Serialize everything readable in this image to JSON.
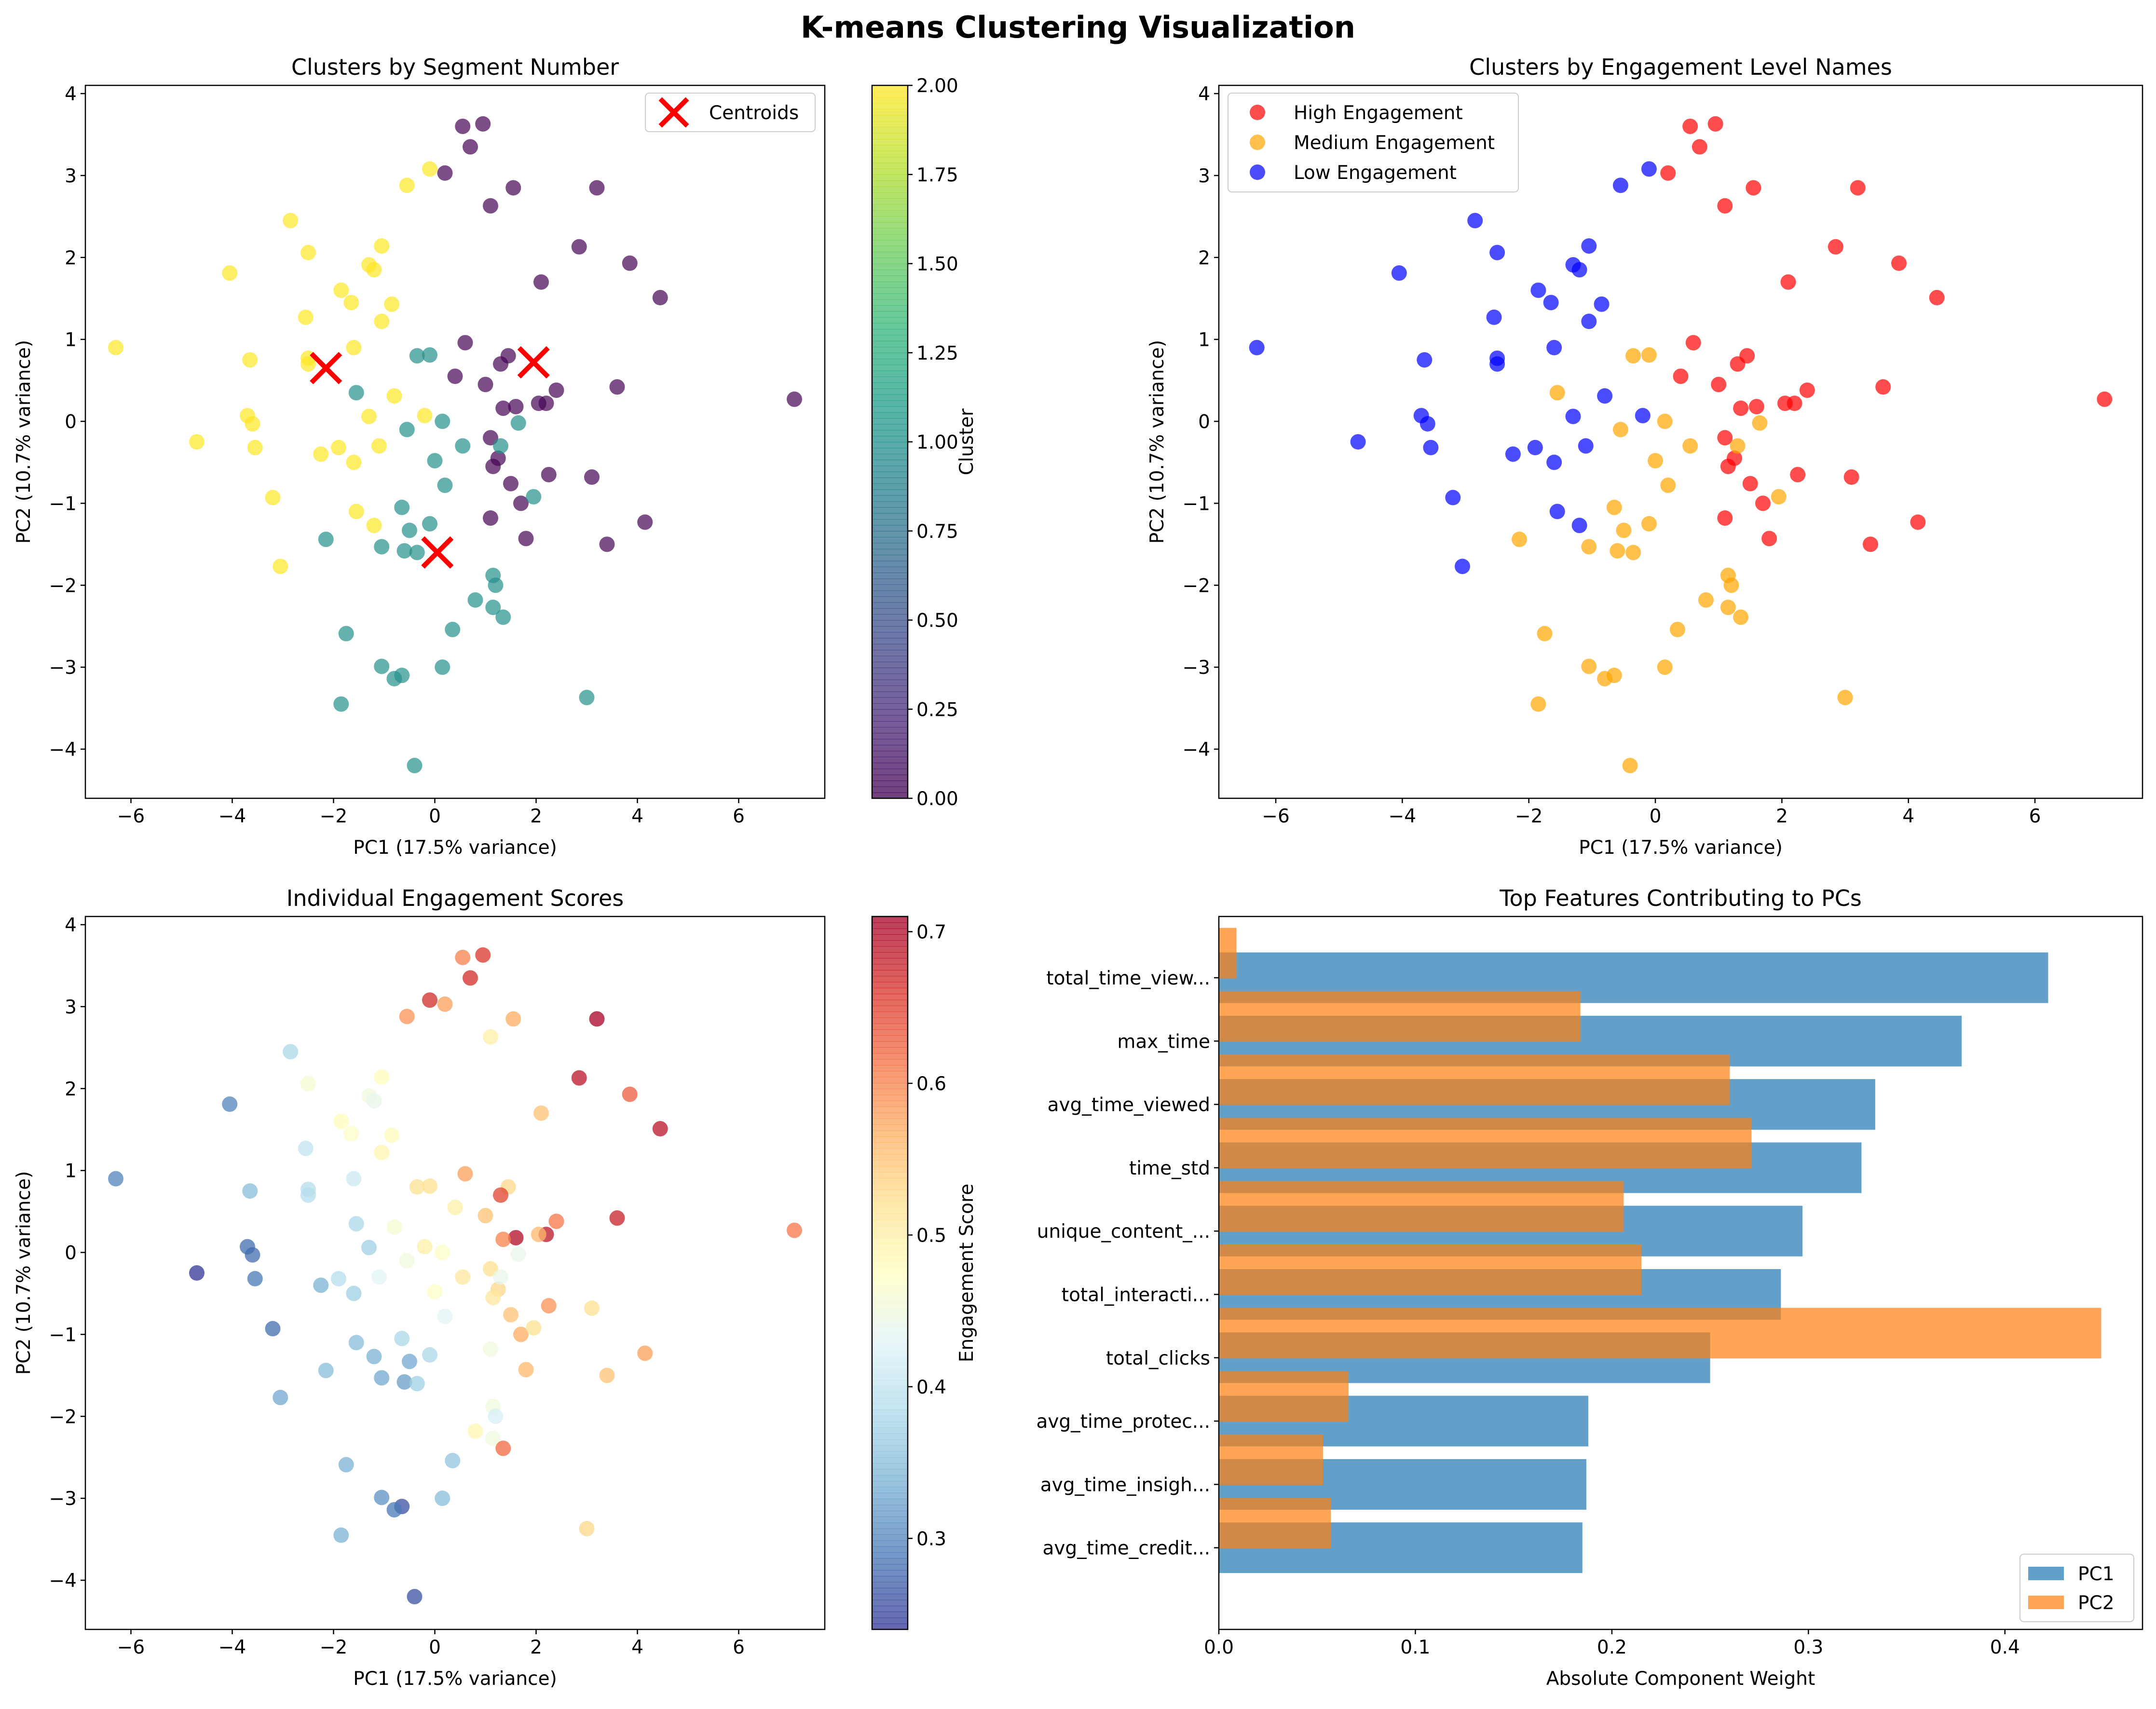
{
  "figure": {
    "title": "K-means Clustering Visualization"
  },
  "chart_data": [
    {
      "id": "clusters-by-segment",
      "type": "scatter",
      "title": "Clusters by Segment Number",
      "xlabel": "PC1 (17.5% variance)",
      "ylabel": "PC2 (10.7% variance)",
      "xlim": [
        -6.9,
        7.7
      ],
      "ylim": [
        -4.6,
        4.1
      ],
      "xticks": [
        -6,
        -4,
        -2,
        0,
        2,
        4,
        6
      ],
      "yticks": [
        -4,
        -3,
        -2,
        -1,
        0,
        1,
        2,
        3,
        4
      ],
      "point_source": "points",
      "color_by": "cluster",
      "colormap": "viridis",
      "colorbar": {
        "label": "Cluster",
        "min": 0,
        "max": 2,
        "ticks": [
          "0.00",
          "0.25",
          "0.50",
          "0.75",
          "1.00",
          "1.25",
          "1.50",
          "1.75",
          "2.00"
        ]
      },
      "centroids": [
        [
          -2.15,
          0.65
        ],
        [
          1.95,
          0.72
        ],
        [
          0.05,
          -1.6
        ]
      ],
      "legend": {
        "position": "top-right",
        "entries": [
          {
            "label": "Centroids",
            "marker": "x",
            "color": "#ff0000"
          }
        ]
      }
    },
    {
      "id": "clusters-by-engagement-level",
      "type": "scatter",
      "title": "Clusters by Engagement Level Names",
      "xlabel": "PC1 (17.5% variance)",
      "ylabel": "PC2 (10.7% variance)",
      "xlim": [
        -6.9,
        7.7
      ],
      "ylim": [
        -4.6,
        4.1
      ],
      "xticks": [
        -6,
        -4,
        -2,
        0,
        2,
        4,
        6
      ],
      "yticks": [
        -4,
        -3,
        -2,
        -1,
        0,
        1,
        2,
        3,
        4
      ],
      "point_source": "points",
      "color_by": "cluster",
      "category_colors": {
        "0": "#ff0000",
        "1": "#ffa500",
        "2": "#0000ff"
      },
      "legend": {
        "position": "top-left",
        "entries": [
          {
            "label": "High Engagement",
            "color": "#ff0000"
          },
          {
            "label": "Medium Engagement",
            "color": "#ffa500"
          },
          {
            "label": "Low Engagement",
            "color": "#0000ff"
          }
        ]
      }
    },
    {
      "id": "individual-engagement-scores",
      "type": "scatter",
      "title": "Individual Engagement Scores",
      "xlabel": "PC1 (17.5% variance)",
      "ylabel": "PC2 (10.7% variance)",
      "xlim": [
        -6.9,
        7.7
      ],
      "ylim": [
        -4.6,
        4.1
      ],
      "xticks": [
        -6,
        -4,
        -2,
        0,
        2,
        4,
        6
      ],
      "yticks": [
        -4,
        -3,
        -2,
        -1,
        0,
        1,
        2,
        3,
        4
      ],
      "point_source": "points",
      "color_by": "score",
      "colormap": "RdYlBu_r",
      "colorbar": {
        "label": "Engagement Score",
        "min": 0.24,
        "max": 0.71,
        "ticks": [
          "0.3",
          "0.4",
          "0.5",
          "0.6",
          "0.7"
        ]
      }
    },
    {
      "id": "top-features",
      "type": "bar",
      "orientation": "horizontal",
      "title": "Top Features Contributing to PCs",
      "xlabel": "Absolute Component Weight",
      "xlim": [
        0,
        0.47
      ],
      "xticks": [
        "0.0",
        "0.1",
        "0.2",
        "0.3",
        "0.4"
      ],
      "categories": [
        "total_time_view...",
        "max_time",
        "avg_time_viewed",
        "time_std",
        "unique_content_...",
        "total_interacti...",
        "total_clicks",
        "avg_time_protec...",
        "avg_time_insigh...",
        "avg_time_credit..."
      ],
      "series": [
        {
          "name": "PC1",
          "color": "#1f77b4",
          "values": [
            0.422,
            0.378,
            0.334,
            0.327,
            0.297,
            0.286,
            0.25,
            0.188,
            0.187,
            0.185
          ]
        },
        {
          "name": "PC2",
          "color": "#ff7f0e",
          "values": [
            0.009,
            0.184,
            0.26,
            0.271,
            0.206,
            0.215,
            0.449,
            0.066,
            0.053,
            0.057
          ]
        }
      ],
      "legend": {
        "position": "bottom-right"
      }
    }
  ],
  "points": [
    {
      "x": 0.55,
      "y": 3.6,
      "cluster": 0,
      "score": 0.6
    },
    {
      "x": 0.95,
      "y": 3.63,
      "cluster": 0,
      "score": 0.66
    },
    {
      "x": 0.7,
      "y": 3.35,
      "cluster": 0,
      "score": 0.67
    },
    {
      "x": 0.2,
      "y": 3.03,
      "cluster": 0,
      "score": 0.58
    },
    {
      "x": 1.55,
      "y": 2.85,
      "cluster": 0,
      "score": 0.57
    },
    {
      "x": 3.2,
      "y": 2.85,
      "cluster": 0,
      "score": 0.71
    },
    {
      "x": 1.1,
      "y": 2.63,
      "cluster": 0,
      "score": 0.5
    },
    {
      "x": 2.85,
      "y": 2.13,
      "cluster": 0,
      "score": 0.69
    },
    {
      "x": 3.85,
      "y": 1.93,
      "cluster": 0,
      "score": 0.63
    },
    {
      "x": 2.1,
      "y": 1.7,
      "cluster": 0,
      "score": 0.55
    },
    {
      "x": 4.45,
      "y": 1.51,
      "cluster": 0,
      "score": 0.69
    },
    {
      "x": 0.6,
      "y": 0.96,
      "cluster": 0,
      "score": 0.58
    },
    {
      "x": 1.45,
      "y": 0.8,
      "cluster": 0,
      "score": 0.53
    },
    {
      "x": 1.3,
      "y": 0.7,
      "cluster": 0,
      "score": 0.65
    },
    {
      "x": 0.4,
      "y": 0.55,
      "cluster": 0,
      "score": 0.5
    },
    {
      "x": 2.4,
      "y": 0.38,
      "cluster": 0,
      "score": 0.61
    },
    {
      "x": 3.6,
      "y": 0.42,
      "cluster": 0,
      "score": 0.68
    },
    {
      "x": 1.0,
      "y": 0.45,
      "cluster": 0,
      "score": 0.55
    },
    {
      "x": 2.2,
      "y": 0.22,
      "cluster": 0,
      "score": 0.69
    },
    {
      "x": 2.05,
      "y": 0.22,
      "cluster": 0,
      "score": 0.56
    },
    {
      "x": 1.6,
      "y": 0.18,
      "cluster": 0,
      "score": 0.7
    },
    {
      "x": 1.35,
      "y": 0.16,
      "cluster": 0,
      "score": 0.6
    },
    {
      "x": 7.1,
      "y": 0.27,
      "cluster": 0,
      "score": 0.61
    },
    {
      "x": 1.1,
      "y": -0.2,
      "cluster": 0,
      "score": 0.52
    },
    {
      "x": 1.25,
      "y": -0.45,
      "cluster": 0,
      "score": 0.53
    },
    {
      "x": 1.15,
      "y": -0.55,
      "cluster": 0,
      "score": 0.51
    },
    {
      "x": 2.25,
      "y": -0.65,
      "cluster": 0,
      "score": 0.59
    },
    {
      "x": 3.1,
      "y": -0.68,
      "cluster": 0,
      "score": 0.52
    },
    {
      "x": 1.5,
      "y": -0.76,
      "cluster": 0,
      "score": 0.55
    },
    {
      "x": 1.7,
      "y": -1.0,
      "cluster": 0,
      "score": 0.57
    },
    {
      "x": 1.1,
      "y": -1.18,
      "cluster": 0,
      "score": 0.45
    },
    {
      "x": 4.15,
      "y": -1.23,
      "cluster": 0,
      "score": 0.58
    },
    {
      "x": 1.8,
      "y": -1.43,
      "cluster": 0,
      "score": 0.56
    },
    {
      "x": 3.4,
      "y": -1.5,
      "cluster": 0,
      "score": 0.55
    },
    {
      "x": -0.35,
      "y": 0.8,
      "cluster": 1,
      "score": 0.52
    },
    {
      "x": -0.1,
      "y": 0.81,
      "cluster": 1,
      "score": 0.52
    },
    {
      "x": -1.55,
      "y": 0.35,
      "cluster": 1,
      "score": 0.38
    },
    {
      "x": 0.15,
      "y": 0.0,
      "cluster": 1,
      "score": 0.47
    },
    {
      "x": -0.55,
      "y": -0.1,
      "cluster": 1,
      "score": 0.45
    },
    {
      "x": 0.55,
      "y": -0.3,
      "cluster": 1,
      "score": 0.51
    },
    {
      "x": 1.3,
      "y": -0.3,
      "cluster": 1,
      "score": 0.44
    },
    {
      "x": 0.0,
      "y": -0.48,
      "cluster": 1,
      "score": 0.47
    },
    {
      "x": 0.2,
      "y": -0.78,
      "cluster": 1,
      "score": 0.43
    },
    {
      "x": 1.65,
      "y": -0.02,
      "cluster": 1,
      "score": 0.44
    },
    {
      "x": 1.95,
      "y": -0.92,
      "cluster": 1,
      "score": 0.52
    },
    {
      "x": -0.65,
      "y": -1.05,
      "cluster": 1,
      "score": 0.38
    },
    {
      "x": -0.1,
      "y": -1.25,
      "cluster": 1,
      "score": 0.38
    },
    {
      "x": -0.5,
      "y": -1.33,
      "cluster": 1,
      "score": 0.33
    },
    {
      "x": -1.05,
      "y": -1.53,
      "cluster": 1,
      "score": 0.33
    },
    {
      "x": -0.6,
      "y": -1.58,
      "cluster": 1,
      "score": 0.32
    },
    {
      "x": -2.15,
      "y": -1.44,
      "cluster": 1,
      "score": 0.35
    },
    {
      "x": -0.35,
      "y": -1.6,
      "cluster": 1,
      "score": 0.37
    },
    {
      "x": 1.15,
      "y": -1.88,
      "cluster": 1,
      "score": 0.45
    },
    {
      "x": 1.2,
      "y": -2.0,
      "cluster": 1,
      "score": 0.42
    },
    {
      "x": 0.8,
      "y": -2.18,
      "cluster": 1,
      "score": 0.49
    },
    {
      "x": 1.15,
      "y": -2.27,
      "cluster": 1,
      "score": 0.45
    },
    {
      "x": 1.35,
      "y": -2.39,
      "cluster": 1,
      "score": 0.62
    },
    {
      "x": 0.35,
      "y": -2.54,
      "cluster": 1,
      "score": 0.36
    },
    {
      "x": -1.75,
      "y": -2.59,
      "cluster": 1,
      "score": 0.34
    },
    {
      "x": -1.05,
      "y": -2.99,
      "cluster": 1,
      "score": 0.31
    },
    {
      "x": 0.15,
      "y": -3.0,
      "cluster": 1,
      "score": 0.35
    },
    {
      "x": -0.65,
      "y": -3.1,
      "cluster": 1,
      "score": 0.26
    },
    {
      "x": -0.8,
      "y": -3.14,
      "cluster": 1,
      "score": 0.29
    },
    {
      "x": 3.0,
      "y": -3.37,
      "cluster": 1,
      "score": 0.53
    },
    {
      "x": -1.85,
      "y": -3.45,
      "cluster": 1,
      "score": 0.34
    },
    {
      "x": -0.4,
      "y": -4.2,
      "cluster": 1,
      "score": 0.26
    },
    {
      "x": -0.1,
      "y": 3.08,
      "cluster": 2,
      "score": 0.67
    },
    {
      "x": -0.55,
      "y": 2.88,
      "cluster": 2,
      "score": 0.59
    },
    {
      "x": -2.85,
      "y": 2.45,
      "cluster": 2,
      "score": 0.38
    },
    {
      "x": -2.5,
      "y": 2.06,
      "cluster": 2,
      "score": 0.46
    },
    {
      "x": -1.05,
      "y": 2.14,
      "cluster": 2,
      "score": 0.48
    },
    {
      "x": -1.3,
      "y": 1.91,
      "cluster": 2,
      "score": 0.45
    },
    {
      "x": -1.2,
      "y": 1.85,
      "cluster": 2,
      "score": 0.44
    },
    {
      "x": -4.05,
      "y": 1.81,
      "cluster": 2,
      "score": 0.3
    },
    {
      "x": -1.85,
      "y": 1.6,
      "cluster": 2,
      "score": 0.48
    },
    {
      "x": -1.65,
      "y": 1.45,
      "cluster": 2,
      "score": 0.47
    },
    {
      "x": -0.85,
      "y": 1.43,
      "cluster": 2,
      "score": 0.48
    },
    {
      "x": -2.55,
      "y": 1.27,
      "cluster": 2,
      "score": 0.4
    },
    {
      "x": -1.05,
      "y": 1.22,
      "cluster": 2,
      "score": 0.49
    },
    {
      "x": -1.6,
      "y": 0.9,
      "cluster": 2,
      "score": 0.41
    },
    {
      "x": -6.3,
      "y": 0.9,
      "cluster": 2,
      "score": 0.3
    },
    {
      "x": -3.65,
      "y": 0.75,
      "cluster": 2,
      "score": 0.35
    },
    {
      "x": -2.5,
      "y": 0.77,
      "cluster": 2,
      "score": 0.39
    },
    {
      "x": -2.5,
      "y": 0.7,
      "cluster": 2,
      "score": 0.39
    },
    {
      "x": -0.8,
      "y": 0.31,
      "cluster": 2,
      "score": 0.46
    },
    {
      "x": -3.7,
      "y": 0.07,
      "cluster": 2,
      "score": 0.28
    },
    {
      "x": -1.3,
      "y": 0.06,
      "cluster": 2,
      "score": 0.37
    },
    {
      "x": -3.6,
      "y": -0.03,
      "cluster": 2,
      "score": 0.28
    },
    {
      "x": -0.2,
      "y": 0.07,
      "cluster": 2,
      "score": 0.5
    },
    {
      "x": -3.55,
      "y": -0.32,
      "cluster": 2,
      "score": 0.29
    },
    {
      "x": -4.7,
      "y": -0.25,
      "cluster": 2,
      "score": 0.24
    },
    {
      "x": -1.9,
      "y": -0.32,
      "cluster": 2,
      "score": 0.39
    },
    {
      "x": -1.1,
      "y": -0.3,
      "cluster": 2,
      "score": 0.43
    },
    {
      "x": -2.25,
      "y": -0.4,
      "cluster": 2,
      "score": 0.34
    },
    {
      "x": -1.6,
      "y": -0.5,
      "cluster": 2,
      "score": 0.37
    },
    {
      "x": -3.2,
      "y": -0.93,
      "cluster": 2,
      "score": 0.28
    },
    {
      "x": -1.55,
      "y": -1.1,
      "cluster": 2,
      "score": 0.35
    },
    {
      "x": -1.2,
      "y": -1.27,
      "cluster": 2,
      "score": 0.34
    },
    {
      "x": -3.05,
      "y": -1.77,
      "cluster": 2,
      "score": 0.33
    }
  ]
}
